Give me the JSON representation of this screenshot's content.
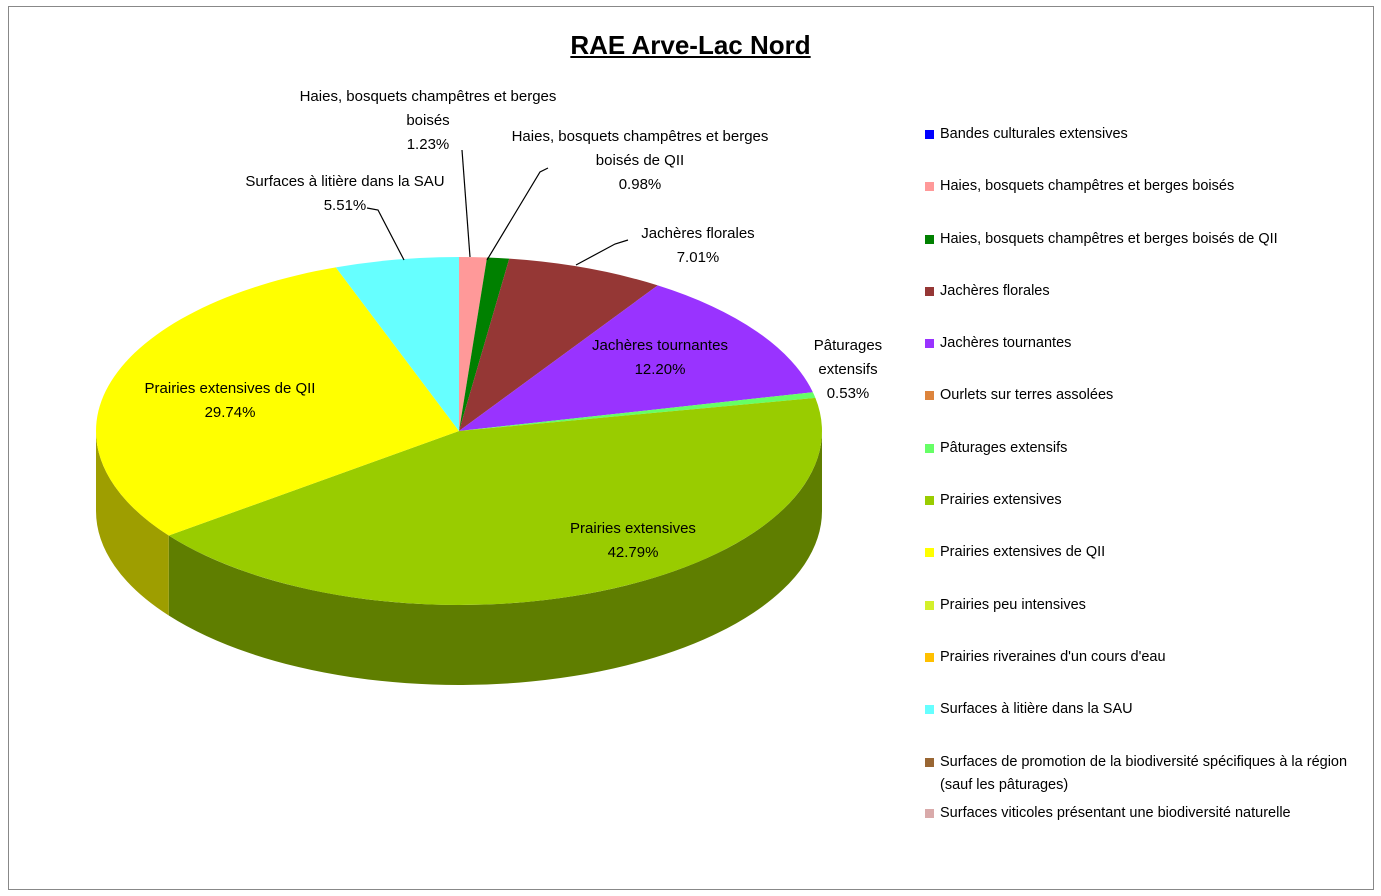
{
  "chart_data": {
    "type": "pie",
    "title": "RAE Arve-Lac Nord",
    "categories": [
      "Bandes culturales extensives",
      "Haies, bosquets champêtres et berges boisés",
      "Haies, bosquets champêtres et berges boisés de QII",
      "Jachères florales",
      "Jachères tournantes",
      "Ourlets sur terres assolées",
      "Pâturages extensifs",
      "Prairies extensives",
      "Prairies extensives de QII",
      "Prairies peu intensives",
      "Prairies riveraines d'un cours d'eau",
      "Surfaces à litière dans la SAU",
      "Surfaces de promotion de la biodiversité spécifiques à la région (sauf les pâturages)",
      "Surfaces viticoles présentant une biodiversité naturelle"
    ],
    "values": [
      0,
      1.23,
      0.98,
      7.01,
      12.2,
      0,
      0.53,
      42.79,
      29.74,
      0,
      0,
      5.51,
      0,
      0
    ],
    "value_labels": [
      null,
      "1.23%",
      "0.98%",
      "7.01%",
      "12.20%",
      null,
      "0.53%",
      "42.79%",
      "29.74%",
      null,
      null,
      "5.51%",
      null,
      null
    ],
    "colors": [
      "#0000ff",
      "#ff9999",
      "#008000",
      "#953735",
      "#9933ff",
      "#dd843c",
      "#66ff66",
      "#99cc00",
      "#ffff00",
      "#d4f02a",
      "#ffc000",
      "#66ffff",
      "#996633",
      "#d9aaaa"
    ],
    "legend": "right"
  }
}
